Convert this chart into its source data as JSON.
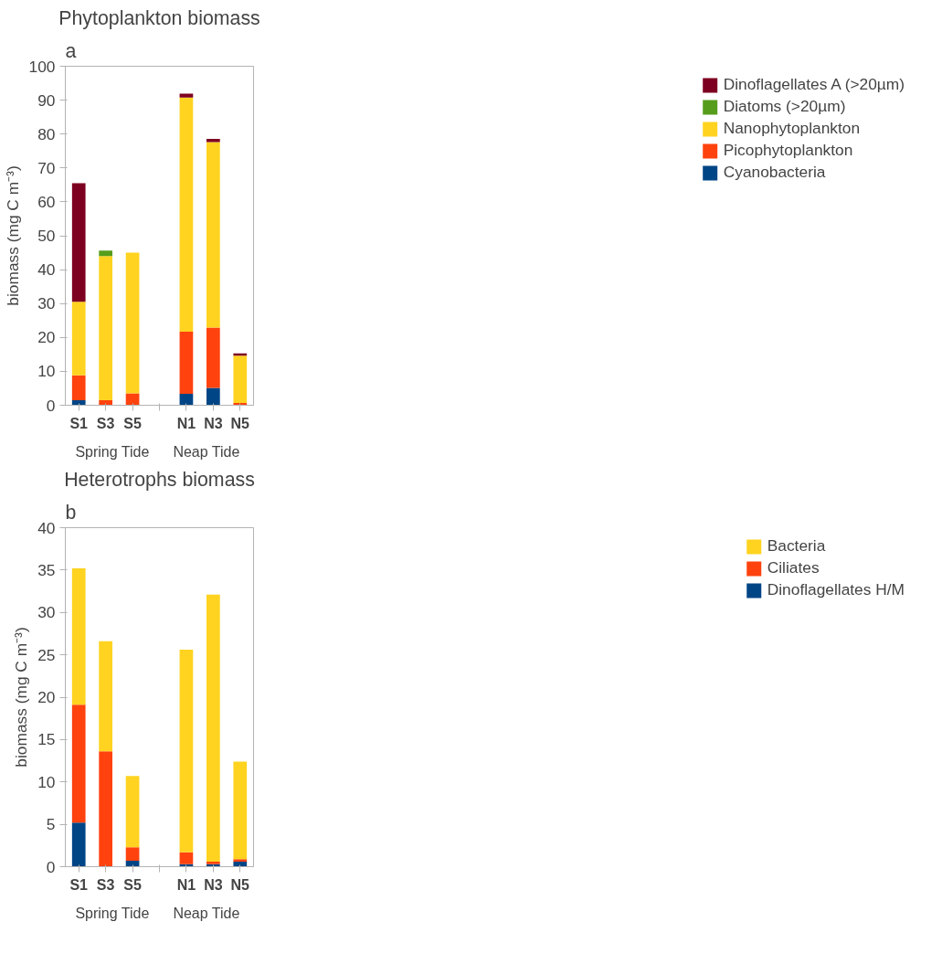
{
  "chart_data": [
    {
      "type": "bar",
      "title": "Phytoplankton biomass",
      "ylabel": "biomass (mg C m⁻³)",
      "stacked": true,
      "legend": "right",
      "grid": false,
      "categories": [
        "S1",
        "S3",
        "S5",
        null,
        "N1",
        "N3",
        "N5"
      ],
      "ylim": [
        0,
        100
      ],
      "yticks": [
        0,
        10,
        20,
        30,
        40,
        50,
        60,
        70,
        80,
        90,
        100
      ],
      "annotations": [
        "a",
        "Spring Tide",
        "Neap Tide"
      ],
      "series": [
        {
          "name": "Cyanobacteria",
          "color": "#004586",
          "values": [
            1.5,
            0,
            0,
            null,
            3.4,
            5.1,
            0
          ]
        },
        {
          "name": "Picophytoplankton",
          "color": "#ff420e",
          "values": [
            7.3,
            1.5,
            3.5,
            null,
            18.3,
            17.8,
            0.7
          ]
        },
        {
          "name": "Nanophytoplankton",
          "color": "#ffd320",
          "values": [
            21.7,
            42.5,
            41.5,
            null,
            69.1,
            54.7,
            13.9
          ]
        },
        {
          "name": "Diatoms (>20µm)",
          "color": "#579d1c",
          "values": [
            0,
            1.6,
            0,
            null,
            0,
            0,
            0
          ]
        },
        {
          "name": "Dinoflagellates A (>20µm)",
          "color": "#7e0021",
          "values": [
            35,
            0,
            0,
            null,
            1.1,
            1.0,
            0.7
          ]
        }
      ]
    },
    {
      "type": "bar",
      "title": "Heterotrophs biomass",
      "ylabel": "biomass (mg C m⁻³)",
      "stacked": true,
      "legend": "right",
      "grid": false,
      "categories": [
        "S1",
        "S3",
        "S5",
        null,
        "N1",
        "N3",
        "N5"
      ],
      "ylim": [
        0,
        40
      ],
      "yticks": [
        0,
        5,
        10,
        15,
        20,
        25,
        30,
        35,
        40
      ],
      "annotations": [
        "b",
        "Spring Tide",
        "Neap Tide"
      ],
      "series": [
        {
          "name": "Dinoflagellates H/M",
          "color": "#004586",
          "values": [
            5.2,
            0,
            0.7,
            null,
            0.3,
            0.3,
            0.6
          ]
        },
        {
          "name": "Ciliates",
          "color": "#ff420e",
          "values": [
            13.9,
            13.6,
            1.6,
            null,
            1.4,
            0.3,
            0.3
          ]
        },
        {
          "name": "Bacteria",
          "color": "#ffd320",
          "values": [
            16.1,
            13.0,
            8.4,
            null,
            23.9,
            31.5,
            11.5
          ]
        }
      ]
    }
  ]
}
